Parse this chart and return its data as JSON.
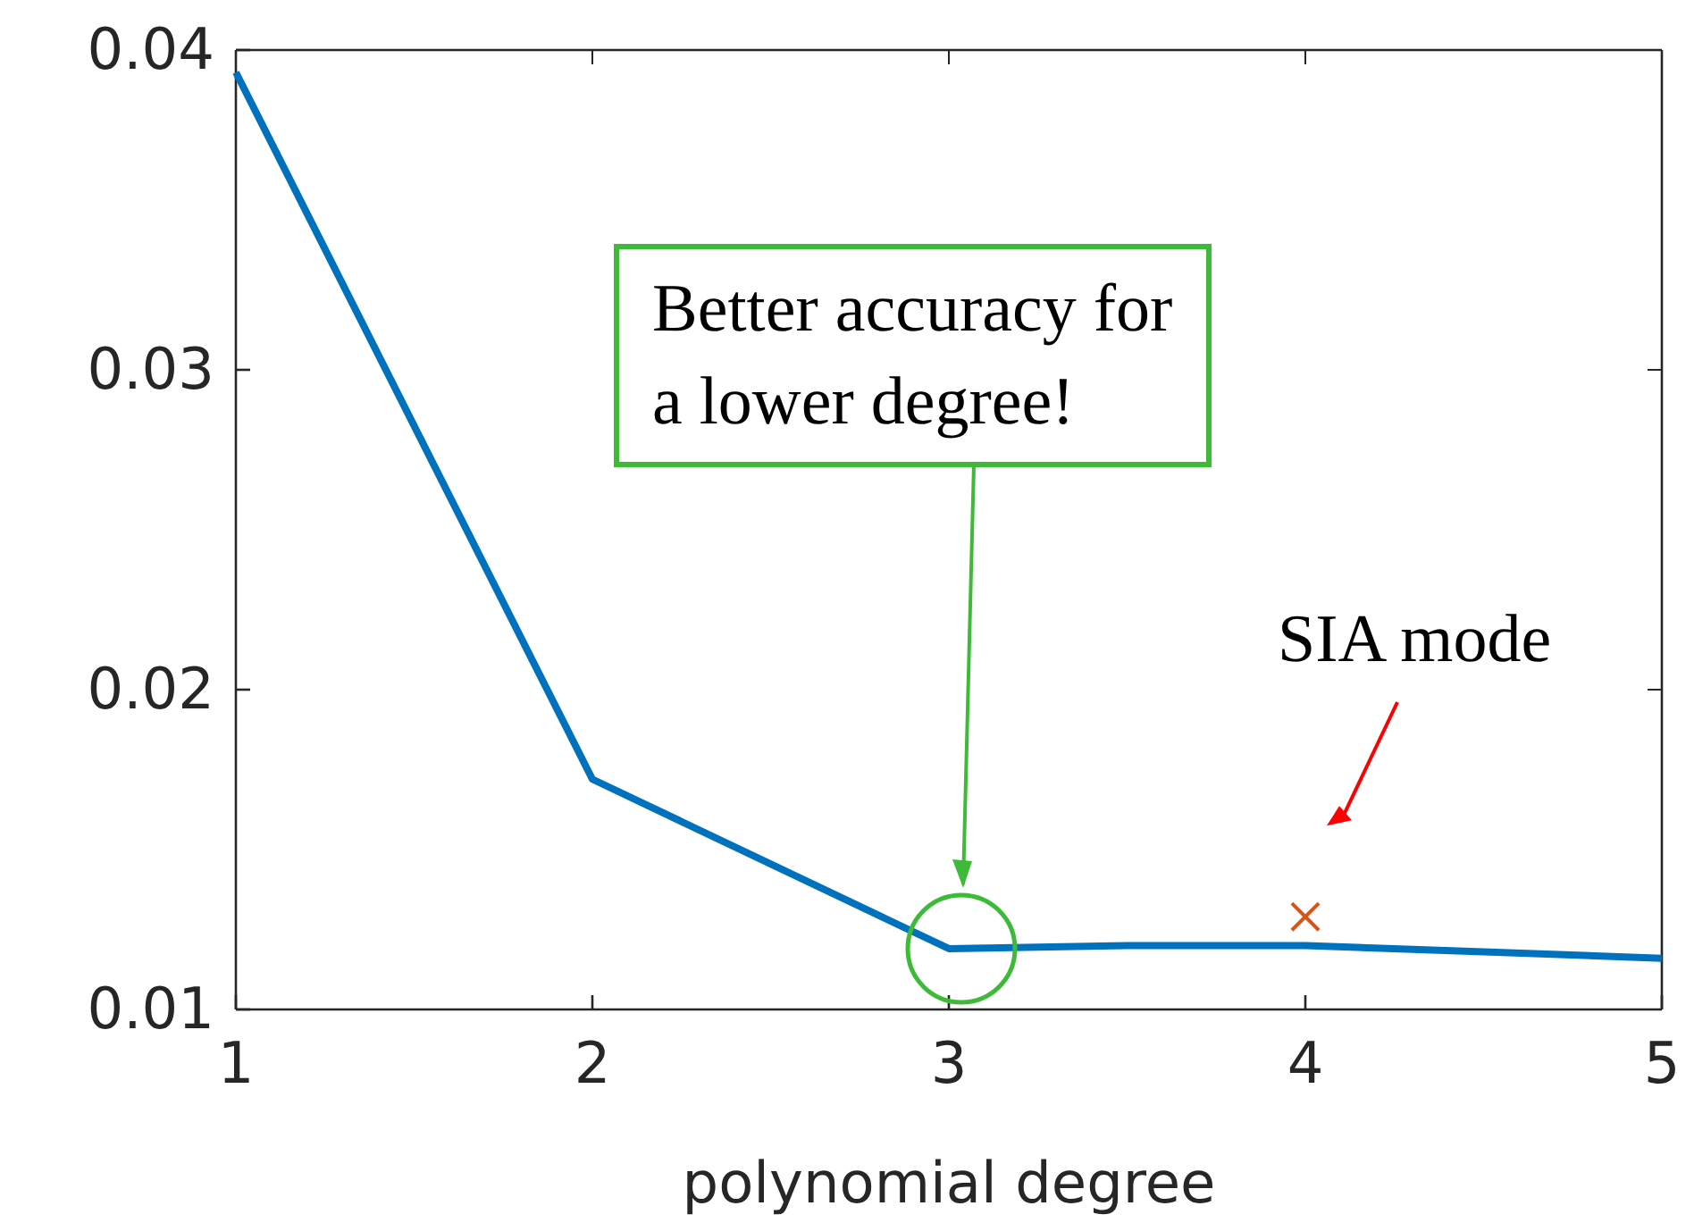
{
  "chart_data": {
    "type": "line",
    "xlabel": "polynomial degree",
    "xlim": [
      1,
      5
    ],
    "xticks": [
      1,
      2,
      3,
      4,
      5
    ],
    "ylim": [
      0.01,
      0.04
    ],
    "yticks": [
      0.01,
      0.02,
      0.03,
      0.04
    ],
    "grid": false,
    "series": [
      {
        "color": "#0072bd",
        "x": [
          1,
          2,
          3,
          3.5,
          4,
          4.5,
          5
        ],
        "values": [
          0.0393,
          0.0172,
          0.0119,
          0.012,
          0.012,
          0.0118,
          0.0116
        ],
        "marker": "none",
        "line_style": "solid"
      },
      {
        "type": "scatter",
        "color": "#d95319",
        "x": [
          4
        ],
        "values": [
          0.0129
        ],
        "marker": "cross"
      }
    ],
    "annotations": [
      "Better accuracy for\na lower degree!",
      "SIA mode"
    ]
  }
}
